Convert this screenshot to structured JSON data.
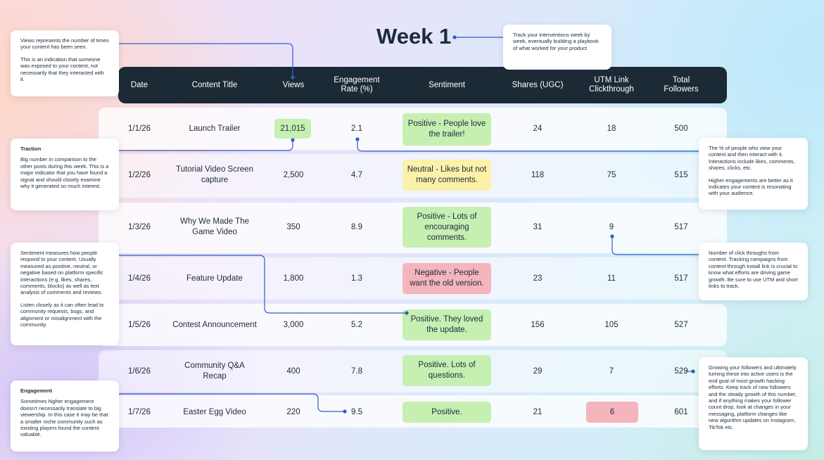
{
  "title": "Week 1",
  "columns": [
    "Date",
    "Content Title",
    "Views",
    "Engagement Rate (%)",
    "Sentiment",
    "Shares (UGC)",
    "UTM Link Clickthrough",
    "Total Followers"
  ],
  "rows": [
    {
      "date": "1/1/26",
      "title": "Launch Trailer",
      "views": "21,015",
      "engagement": "2.1",
      "sentiment": "Positive - People love the trailer!",
      "sentiment_type": "positive",
      "shares": "24",
      "utm": "18",
      "followers": "500"
    },
    {
      "date": "1/2/26",
      "title": "Tutorial Video Screen capture",
      "views": "2,500",
      "engagement": "4.7",
      "sentiment": "Neutral - Likes but not many comments.",
      "sentiment_type": "neutral",
      "shares": "118",
      "utm": "75",
      "followers": "515"
    },
    {
      "date": "1/3/26",
      "title": "Why We Made The Game Video",
      "views": "350",
      "engagement": "8.9",
      "sentiment": "Positive - Lots of encouraging comments.",
      "sentiment_type": "positive",
      "shares": "31",
      "utm": "9",
      "followers": "517"
    },
    {
      "date": "1/4/26",
      "title": "Feature Update",
      "views": "1,800",
      "engagement": "1.3",
      "sentiment": "Negative - People want the old version.",
      "sentiment_type": "negative",
      "shares": "23",
      "utm": "11",
      "followers": "517"
    },
    {
      "date": "1/5/26",
      "title": "Contest Announcement",
      "views": "3,000",
      "engagement": "5.2",
      "sentiment": "Positive. They loved the update.",
      "sentiment_type": "positive",
      "shares": "156",
      "utm": "105",
      "followers": "527"
    },
    {
      "date": "1/6/26",
      "title": "Community Q&A Recap",
      "views": "400",
      "engagement": "7.8",
      "sentiment": "Positive. Lots of questions.",
      "sentiment_type": "positive",
      "shares": "29",
      "utm": "7",
      "followers": "529"
    },
    {
      "date": "1/7/26",
      "title": "Easter Egg Video",
      "views": "220",
      "engagement": "9.5",
      "sentiment": "Positive.",
      "sentiment_type": "positive",
      "shares": "21",
      "utm": "6",
      "followers": "601"
    }
  ],
  "callouts": {
    "week": {
      "text": "Track your interventions week by week, eventually building a playbook of what worked for your product"
    },
    "views": {
      "p1": "Views represents the number of times your content has been seen.",
      "p2": "This is an indication that someone was exposed to your content, not necessarily that they interacted with it."
    },
    "traction": {
      "heading": "Traction",
      "text": "Big number in comparison to the other posts during this week. This is a major indicator that you have found a signal and should closely examine why it generated so much interest."
    },
    "engagement_rate": {
      "p1": "The % of people who view your content and then interact with it. Interactions include likes, comments, shares, clicks, etc.",
      "p2": "Higher engagements are better as it indicates your content is resonating with your audience."
    },
    "utm": {
      "text": "Number of click throughs from content. Tracking campaigns from content through install link is crucial to know what efforts are driving game growth. Be sure to use UTM and short links to track."
    },
    "sentiment": {
      "p1": "Sentiment measures how people respond to your content. Usually measured as positive, neutral, or negative based on platform specific interactions (e.g. likes, shares, comments, blocks) as well as text analysis of comments and reviews.",
      "p2": "Listen closely as it can often lead to community requests, bugs, and alignment or misalignment with the community."
    },
    "followers": {
      "text": "Growing your followers and ultimately turning these into active users is the end goal of most growth hacking efforts. Keep track of new followers and the steady growth of this number, and if anything makes your follower count drop, look at changes in your messaging, platform changes like new algorithm updates on Instagram, TikTok etc."
    },
    "engagement": {
      "heading": "Engagement",
      "text": "Sometimes higher engagement doesn't necessarily translate to big viewership. In this case it may be that a smaller niche community such as existing players found the content valuable."
    }
  },
  "colors": {
    "header": "#1c2a36",
    "positive": "#c6efb2",
    "neutral": "#fbf1a8",
    "negative": "#f4b5bc",
    "connector": "#2d5fc4"
  }
}
